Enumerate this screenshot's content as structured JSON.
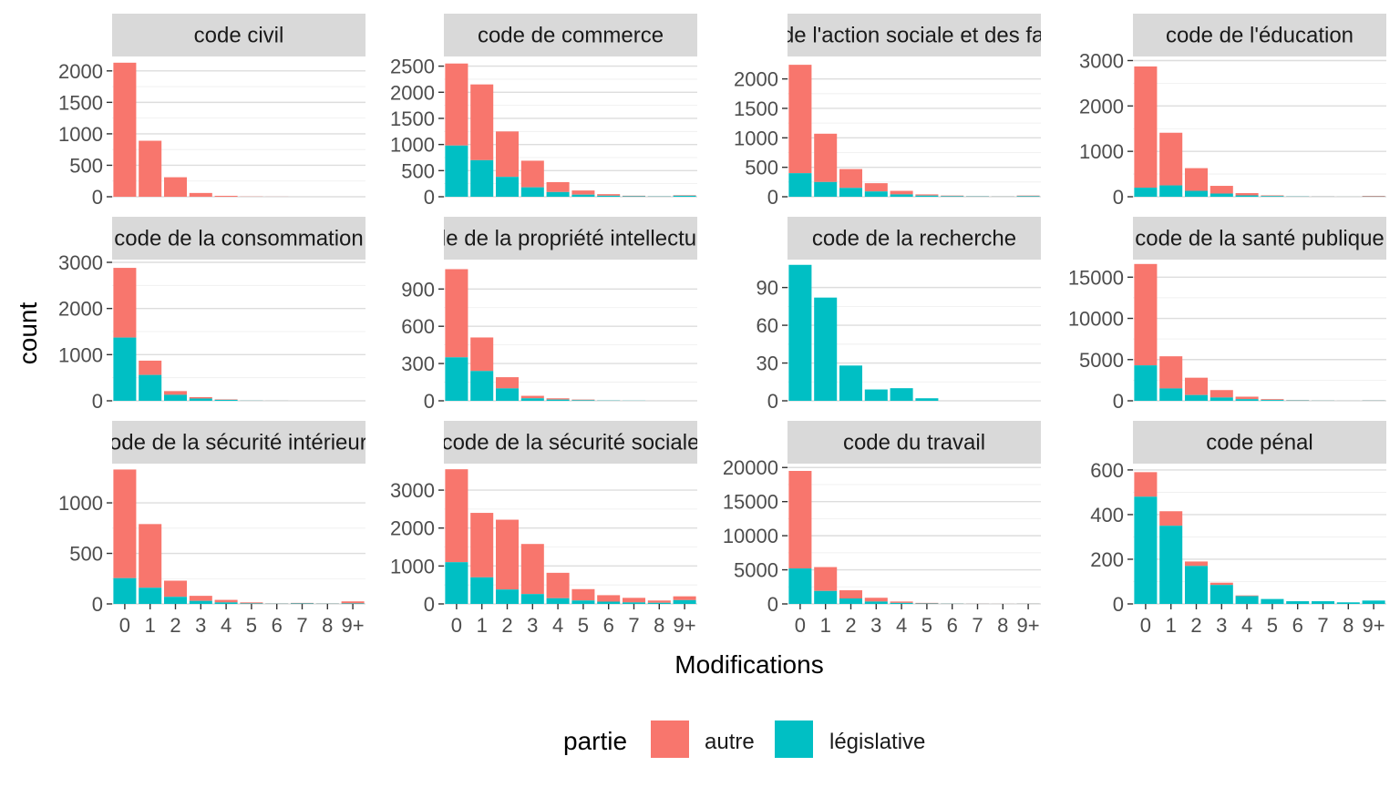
{
  "chart_data": {
    "type": "bar",
    "stacked": true,
    "faceted": true,
    "x_label": "Modifications",
    "y_label": "count",
    "x_categories": [
      "0",
      "1",
      "2",
      "3",
      "4",
      "5",
      "6",
      "7",
      "8",
      "9+"
    ],
    "legend": {
      "title": "partie",
      "position": "bottom",
      "items": [
        {
          "key": "autre",
          "label": "autre",
          "color": "#F8766D"
        },
        {
          "key": "legislative",
          "label": "législative",
          "color": "#00BFC4"
        }
      ]
    },
    "panels": [
      {
        "title": "code civil",
        "ylim": [
          0,
          2200
        ],
        "yticks": [
          0,
          500,
          1000,
          1500,
          2000
        ],
        "yticklabels": [
          "0",
          "500",
          "1000",
          "1500",
          "2000"
        ],
        "total": [
          2130,
          890,
          310,
          60,
          15,
          3,
          1,
          0,
          0,
          0
        ],
        "legislative": [
          0,
          0,
          0,
          0,
          0,
          0,
          0,
          0,
          0,
          0
        ]
      },
      {
        "title": "code de commerce",
        "ylim": [
          0,
          2650
        ],
        "yticks": [
          0,
          500,
          1000,
          1500,
          2000,
          2500
        ],
        "yticklabels": [
          "0",
          "500",
          "1000",
          "1500",
          "2000",
          "2500"
        ],
        "total": [
          2550,
          2150,
          1250,
          690,
          280,
          120,
          50,
          20,
          10,
          30
        ],
        "legislative": [
          980,
          700,
          380,
          180,
          90,
          40,
          20,
          10,
          5,
          20
        ]
      },
      {
        "title": "code de l'action sociale et des familles",
        "ylim": [
          0,
          2350
        ],
        "yticks": [
          0,
          500,
          1000,
          1500,
          2000
        ],
        "yticklabels": [
          "0",
          "500",
          "1000",
          "1500",
          "2000"
        ],
        "total": [
          2240,
          1070,
          470,
          230,
          100,
          40,
          20,
          10,
          5,
          20
        ],
        "legislative": [
          400,
          250,
          150,
          90,
          40,
          20,
          10,
          5,
          2,
          10
        ]
      },
      {
        "title": "code de l'éducation",
        "ylim": [
          0,
          3050
        ],
        "yticks": [
          0,
          1000,
          2000,
          3000
        ],
        "yticklabels": [
          "0",
          "1000",
          "2000",
          "3000"
        ],
        "total": [
          2870,
          1410,
          630,
          240,
          80,
          30,
          10,
          5,
          2,
          20
        ],
        "legislative": [
          200,
          250,
          130,
          70,
          30,
          15,
          5,
          2,
          1,
          5
        ]
      },
      {
        "title": "code de la consommation",
        "ylim": [
          0,
          3000
        ],
        "yticks": [
          0,
          1000,
          2000,
          3000
        ],
        "yticklabels": [
          "0",
          "1000",
          "2000",
          "3000"
        ],
        "total": [
          2880,
          870,
          210,
          80,
          30,
          5,
          2,
          0,
          0,
          0
        ],
        "legislative": [
          1370,
          560,
          130,
          50,
          20,
          3,
          1,
          0,
          0,
          0
        ]
      },
      {
        "title": "code de la propriété intellectuelle",
        "ylim": [
          0,
          1115
        ],
        "yticks": [
          0,
          300,
          600,
          900
        ],
        "yticklabels": [
          "0",
          "300",
          "600",
          "900"
        ],
        "total": [
          1060,
          510,
          190,
          40,
          20,
          10,
          3,
          1,
          0,
          0
        ],
        "legislative": [
          350,
          240,
          100,
          20,
          10,
          5,
          2,
          1,
          0,
          0
        ]
      },
      {
        "title": "code de la recherche",
        "ylim": [
          0,
          110
        ],
        "yticks": [
          0,
          30,
          60,
          90
        ],
        "yticklabels": [
          "0",
          "30",
          "60",
          "90"
        ],
        "total": [
          108,
          82,
          28,
          9,
          10,
          2,
          0,
          0,
          0,
          0
        ],
        "legislative": [
          108,
          82,
          28,
          9,
          10,
          2,
          0,
          0,
          0,
          0
        ]
      },
      {
        "title": "code de la santé publique",
        "ylim": [
          0,
          16800
        ],
        "yticks": [
          0,
          5000,
          10000,
          15000
        ],
        "yticklabels": [
          "0",
          "5000",
          "10000",
          "15000"
        ],
        "total": [
          16600,
          5400,
          2800,
          1300,
          500,
          200,
          80,
          30,
          10,
          50
        ],
        "legislative": [
          4300,
          1500,
          700,
          400,
          200,
          100,
          40,
          15,
          5,
          20
        ]
      },
      {
        "title": "code de la sécurité intérieure",
        "ylim": [
          0,
          1370
        ],
        "yticks": [
          0,
          500,
          1000
        ],
        "yticklabels": [
          "0",
          "500",
          "1000"
        ],
        "total": [
          1330,
          790,
          230,
          80,
          40,
          15,
          5,
          10,
          5,
          25
        ],
        "legislative": [
          255,
          160,
          70,
          30,
          15,
          5,
          2,
          5,
          2,
          5
        ]
      },
      {
        "title": "code de la sécurité sociale",
        "ylim": [
          0,
          3650
        ],
        "yticks": [
          0,
          1000,
          2000,
          3000
        ],
        "yticklabels": [
          "0",
          "1000",
          "2000",
          "3000"
        ],
        "total": [
          3550,
          2400,
          2220,
          1580,
          820,
          390,
          230,
          160,
          90,
          200
        ],
        "legislative": [
          1100,
          700,
          380,
          260,
          150,
          90,
          60,
          40,
          30,
          100
        ]
      },
      {
        "title": "code du travail",
        "ylim": [
          0,
          20300
        ],
        "yticks": [
          0,
          5000,
          10000,
          15000,
          20000
        ],
        "yticklabels": [
          "0",
          "5000",
          "10000",
          "15000",
          "20000"
        ],
        "total": [
          19500,
          5400,
          2000,
          900,
          350,
          150,
          60,
          30,
          15,
          40
        ],
        "legislative": [
          5200,
          1900,
          800,
          350,
          150,
          60,
          25,
          10,
          5,
          15
        ]
      },
      {
        "title": "code pénal",
        "ylim": [
          0,
          620
        ],
        "yticks": [
          0,
          200,
          400,
          600
        ],
        "yticklabels": [
          "0",
          "200",
          "400",
          "600"
        ],
        "total": [
          590,
          415,
          190,
          95,
          38,
          22,
          12,
          12,
          7,
          15
        ],
        "legislative": [
          480,
          350,
          170,
          85,
          35,
          22,
          12,
          12,
          7,
          15
        ]
      }
    ]
  }
}
